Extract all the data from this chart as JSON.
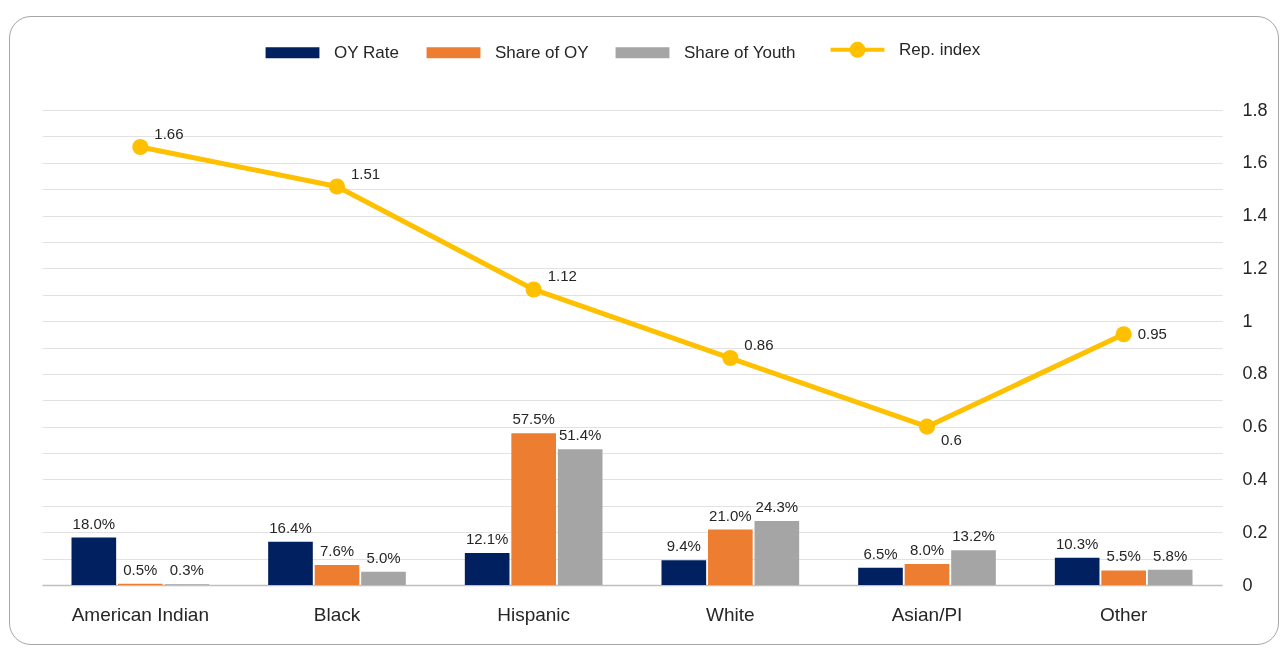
{
  "chart_data": {
    "type": "bar",
    "categories": [
      "American Indian",
      "Black",
      "Hispanic",
      "White",
      "Asian/PI",
      "Other"
    ],
    "series": [
      {
        "name": "OY Rate",
        "color": "#002060",
        "values": [
          18.0,
          16.4,
          12.1,
          9.4,
          6.5,
          10.3
        ],
        "value_labels": [
          "18.0%",
          "16.4%",
          "12.1%",
          "9.4%",
          "6.5%",
          "10.3%"
        ]
      },
      {
        "name": "Share of OY",
        "color": "#ed7d31",
        "values": [
          0.5,
          7.6,
          57.5,
          21.0,
          8.0,
          5.5
        ],
        "value_labels": [
          "0.5%",
          "7.6%",
          "57.5%",
          "21.0%",
          "8.0%",
          "5.5%"
        ]
      },
      {
        "name": "Share of Youth",
        "color": "#a5a5a5",
        "values": [
          0.3,
          5.0,
          51.4,
          24.3,
          13.2,
          5.8
        ],
        "value_labels": [
          "0.3%",
          "5.0%",
          "51.4%",
          "24.3%",
          "13.2%",
          "5.8%"
        ]
      },
      {
        "name": "Rep. index",
        "type": "line",
        "axis": "y2",
        "color": "#ffc000",
        "marker": "circle",
        "line_style": "solid",
        "values": [
          1.66,
          1.51,
          1.12,
          0.86,
          0.6,
          0.95
        ],
        "value_labels": [
          "1.66",
          "1.51",
          "1.12",
          "0.86",
          "0.6",
          "0.95"
        ]
      }
    ],
    "ylim": [
      0,
      180
    ],
    "y2lim": [
      0,
      1.8
    ],
    "y2ticks": [
      0,
      {
        "value": 0.1,
        "label": null
      },
      0.2,
      {
        "value": 0.3,
        "label": null
      },
      0.4,
      {
        "value": 0.5,
        "label": null
      },
      0.6,
      {
        "value": 0.7,
        "label": null
      },
      0.8,
      {
        "value": 0.9,
        "label": null
      },
      {
        "value": 1,
        "label": "1"
      },
      {
        "value": 1.1,
        "label": null
      },
      1.2,
      {
        "value": 1.3,
        "label": null
      },
      1.4,
      {
        "value": 1.5,
        "label": null
      },
      1.6,
      {
        "value": 1.7,
        "label": null
      },
      1.8
    ],
    "grid": "y",
    "legend": "top"
  }
}
